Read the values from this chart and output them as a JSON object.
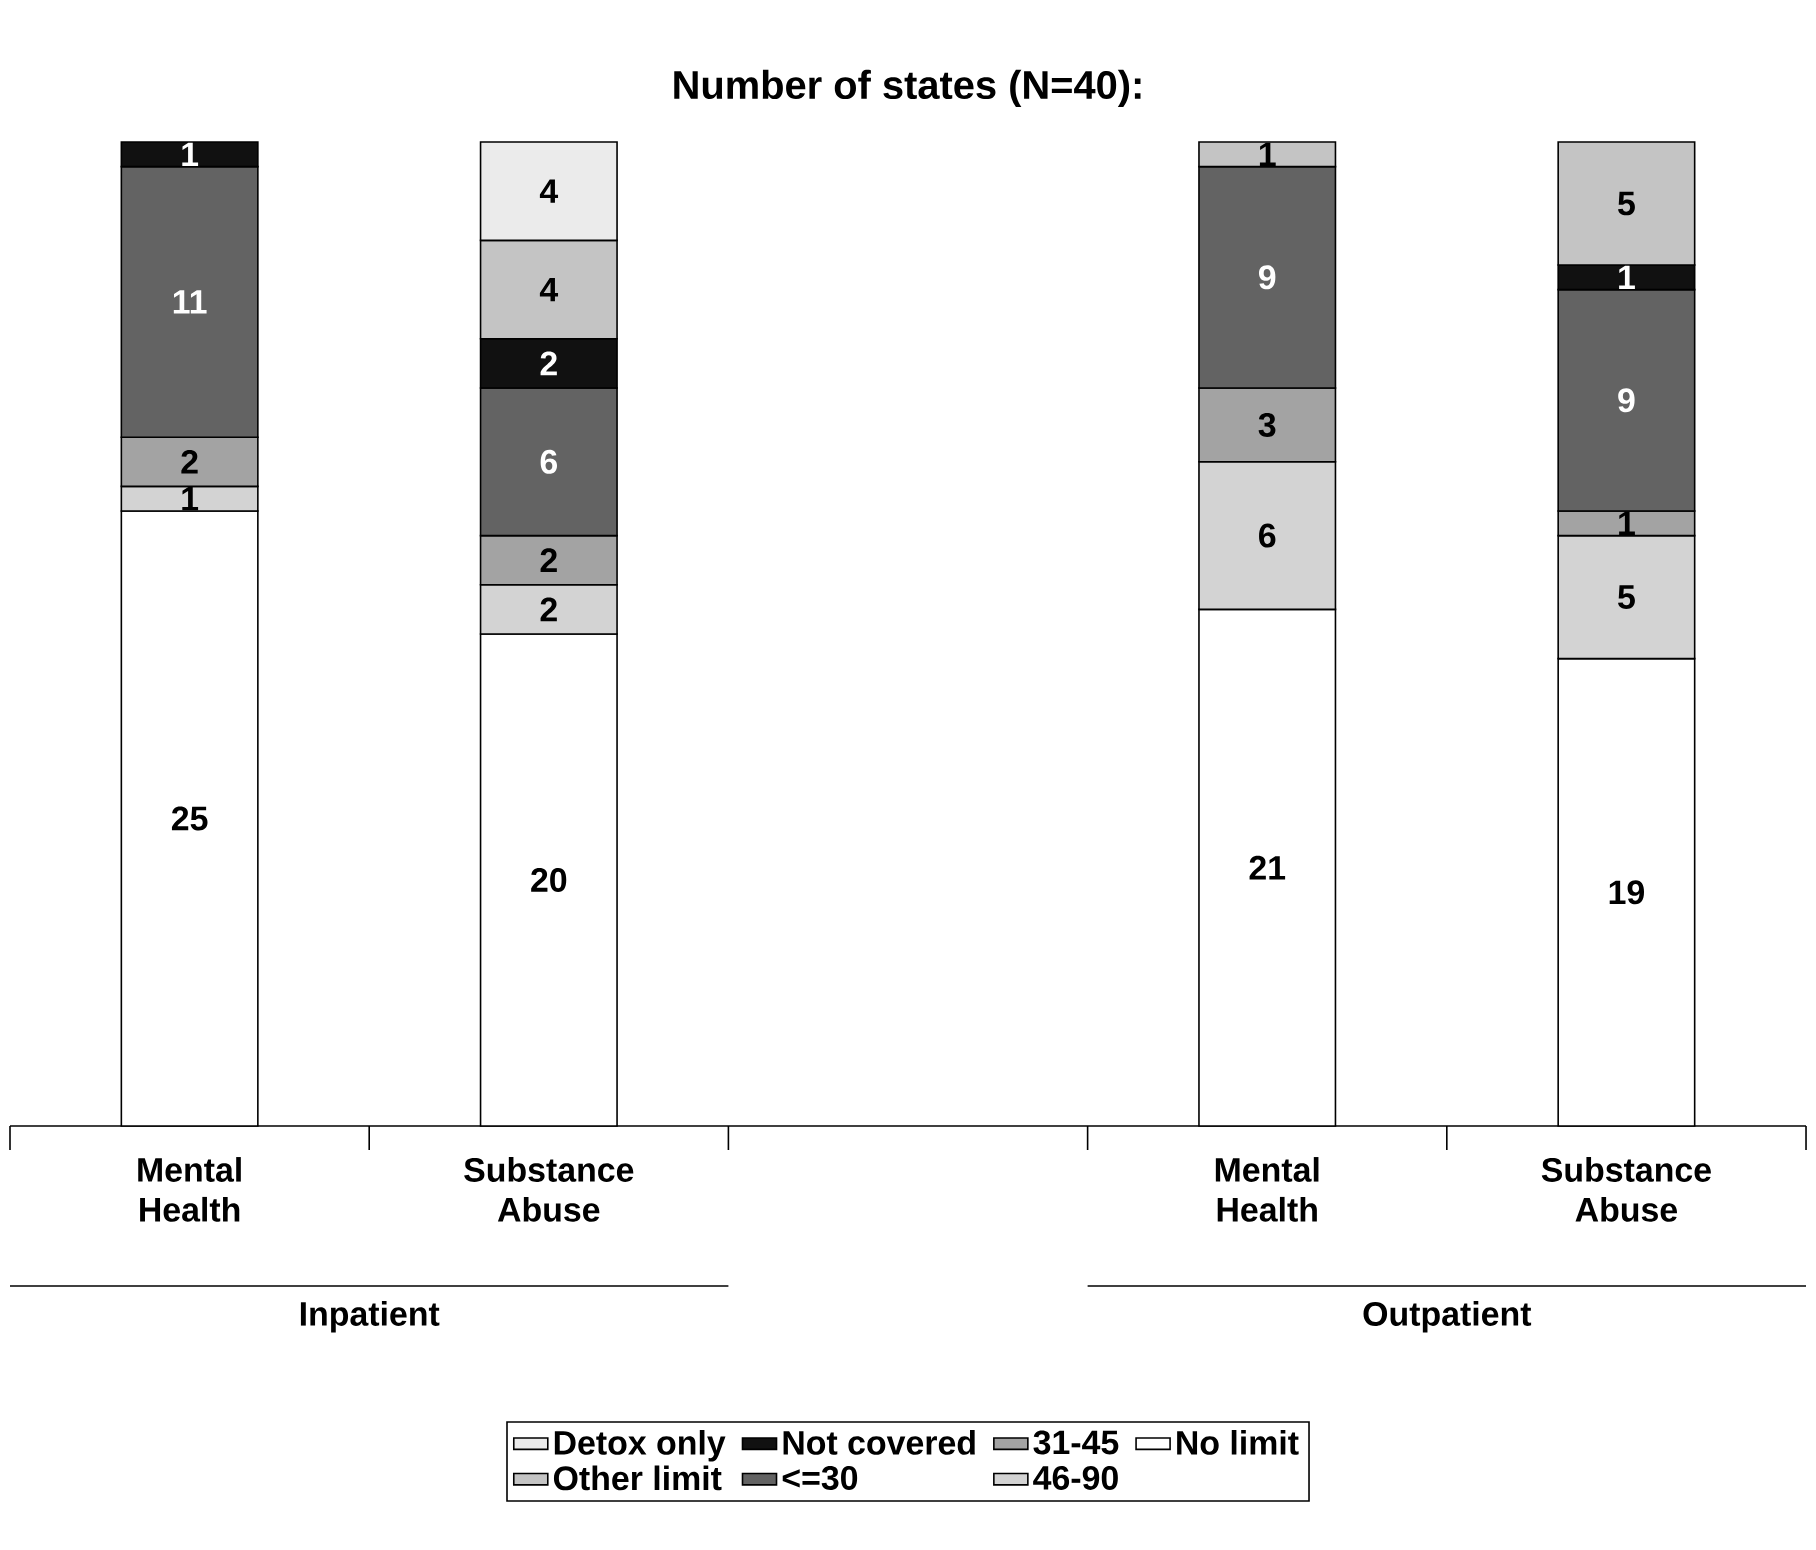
{
  "chart_data": {
    "type": "bar",
    "title": "Number of states (N=40):",
    "stacked": true,
    "data_labels": true,
    "legend": "bottom",
    "categories": [
      "Mental Health",
      "Substance Abuse",
      null,
      "Mental Health",
      "Substance Abuse"
    ],
    "annotations": [
      "Inpatient",
      "Outpatient"
    ],
    "series": [
      {
        "name": "No limit",
        "color": "#ffffff",
        "values": [
          25,
          20,
          null,
          21,
          19
        ]
      },
      {
        "name": "46-90",
        "color": "#d3d3d3",
        "values": [
          1,
          2,
          null,
          6,
          5
        ]
      },
      {
        "name": "31-45",
        "color": "#a3a3a3",
        "values": [
          2,
          2,
          null,
          3,
          1
        ]
      },
      {
        "name": "<=30",
        "color": "#636363",
        "values": [
          11,
          6,
          null,
          9,
          9
        ]
      },
      {
        "name": "Not covered",
        "color": "#111111",
        "values": [
          1,
          2,
          null,
          null,
          1
        ]
      },
      {
        "name": "Other limit",
        "color": "#c4c4c4",
        "values": [
          null,
          4,
          null,
          1,
          5
        ]
      },
      {
        "name": "Detox only",
        "color": "#ebebeb",
        "values": [
          null,
          4,
          null,
          null,
          null
        ]
      }
    ]
  }
}
